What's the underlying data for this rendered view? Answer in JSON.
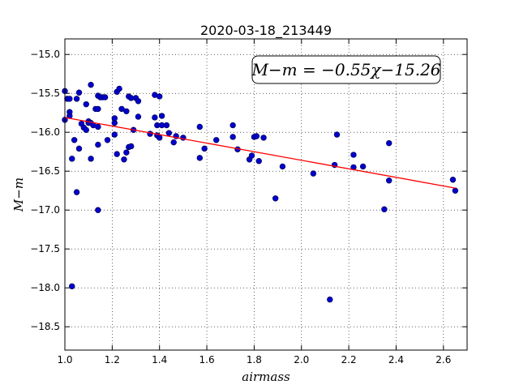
{
  "chart_data": {
    "type": "scatter",
    "title": "2020-03-18_213449",
    "xlabel": "airmass",
    "ylabel": "M−m",
    "xlim": [
      1.0,
      2.7
    ],
    "ylim": [
      -18.8,
      -14.8
    ],
    "y_inverted": false,
    "grid": true,
    "x_ticks": [
      1.0,
      1.2,
      1.4,
      1.6,
      1.8,
      2.0,
      2.2,
      2.4,
      2.6
    ],
    "x_tick_labels": [
      "1.0",
      "1.2",
      "1.4",
      "1.6",
      "1.8",
      "2.0",
      "2.2",
      "2.4",
      "2.6"
    ],
    "y_ticks": [
      -15.0,
      -15.5,
      -16.0,
      -16.5,
      -17.0,
      -17.5,
      -18.0,
      -18.5
    ],
    "y_tick_labels": [
      "−15.0",
      "−15.5",
      "−16.0",
      "−16.5",
      "−17.0",
      "−17.5",
      "−18.0",
      "−18.5"
    ],
    "annotation": "M−m = −0.55χ−15.26",
    "fit": {
      "slope": -0.55,
      "intercept": -15.26,
      "x_range": [
        1.0,
        2.65
      ],
      "color": "#ff0000"
    },
    "point_color": "#0000cc",
    "series": [
      {
        "points": [
          [
            1.0,
            -15.47
          ],
          [
            1.01,
            -15.57
          ],
          [
            1.0,
            -15.84
          ],
          [
            1.02,
            -15.57
          ],
          [
            1.02,
            -15.74
          ],
          [
            1.02,
            -15.79
          ],
          [
            1.03,
            -16.34
          ],
          [
            1.04,
            -16.1
          ],
          [
            1.05,
            -16.77
          ],
          [
            1.05,
            -15.57
          ],
          [
            1.06,
            -15.49
          ],
          [
            1.06,
            -16.21
          ],
          [
            1.07,
            -15.89
          ],
          [
            1.08,
            -15.94
          ],
          [
            1.09,
            -15.97
          ],
          [
            1.09,
            -15.64
          ],
          [
            1.1,
            -15.86
          ],
          [
            1.1,
            -15.88
          ],
          [
            1.11,
            -15.39
          ],
          [
            1.11,
            -15.88
          ],
          [
            1.11,
            -16.34
          ],
          [
            1.12,
            -15.91
          ],
          [
            1.13,
            -15.7
          ],
          [
            1.14,
            -15.7
          ],
          [
            1.14,
            -16.16
          ],
          [
            1.14,
            -15.93
          ],
          [
            1.14,
            -15.53
          ],
          [
            1.15,
            -15.55
          ],
          [
            1.16,
            -15.55
          ],
          [
            1.17,
            -15.55
          ],
          [
            1.18,
            -16.1
          ],
          [
            1.03,
            -17.98
          ],
          [
            1.14,
            -17.0
          ],
          [
            1.21,
            -15.82
          ],
          [
            1.21,
            -15.88
          ],
          [
            1.21,
            -16.03
          ],
          [
            1.22,
            -15.48
          ],
          [
            1.22,
            -16.28
          ],
          [
            1.23,
            -15.44
          ],
          [
            1.24,
            -15.7
          ],
          [
            1.25,
            -16.35
          ],
          [
            1.26,
            -16.26
          ],
          [
            1.26,
            -15.73
          ],
          [
            1.27,
            -16.19
          ],
          [
            1.27,
            -15.54
          ],
          [
            1.28,
            -15.56
          ],
          [
            1.28,
            -16.18
          ],
          [
            1.29,
            -15.97
          ],
          [
            1.3,
            -15.56
          ],
          [
            1.31,
            -15.6
          ],
          [
            1.31,
            -15.8
          ],
          [
            1.36,
            -16.02
          ],
          [
            1.38,
            -15.81
          ],
          [
            1.38,
            -15.52
          ],
          [
            1.39,
            -16.04
          ],
          [
            1.39,
            -15.91
          ],
          [
            1.4,
            -15.54
          ],
          [
            1.4,
            -16.07
          ],
          [
            1.41,
            -15.79
          ],
          [
            1.41,
            -15.91
          ],
          [
            1.43,
            -15.91
          ],
          [
            1.44,
            -16.01
          ],
          [
            1.46,
            -16.13
          ],
          [
            1.47,
            -16.05
          ],
          [
            1.5,
            -16.07
          ],
          [
            1.57,
            -15.93
          ],
          [
            1.57,
            -16.33
          ],
          [
            1.59,
            -16.21
          ],
          [
            1.64,
            -16.1
          ],
          [
            1.71,
            -16.06
          ],
          [
            1.71,
            -15.91
          ],
          [
            1.73,
            -16.22
          ],
          [
            1.78,
            -16.35
          ],
          [
            1.79,
            -16.3
          ],
          [
            1.8,
            -16.06
          ],
          [
            1.81,
            -16.05
          ],
          [
            1.82,
            -16.37
          ],
          [
            1.84,
            -16.07
          ],
          [
            1.89,
            -16.85
          ],
          [
            1.92,
            -16.44
          ],
          [
            2.05,
            -16.53
          ],
          [
            2.12,
            -18.15
          ],
          [
            2.14,
            -16.42
          ],
          [
            2.15,
            -16.03
          ],
          [
            2.22,
            -16.29
          ],
          [
            2.22,
            -16.45
          ],
          [
            2.26,
            -16.44
          ],
          [
            2.35,
            -16.99
          ],
          [
            2.37,
            -16.14
          ],
          [
            2.37,
            -16.62
          ],
          [
            2.64,
            -16.61
          ],
          [
            2.65,
            -16.75
          ]
        ]
      }
    ]
  }
}
